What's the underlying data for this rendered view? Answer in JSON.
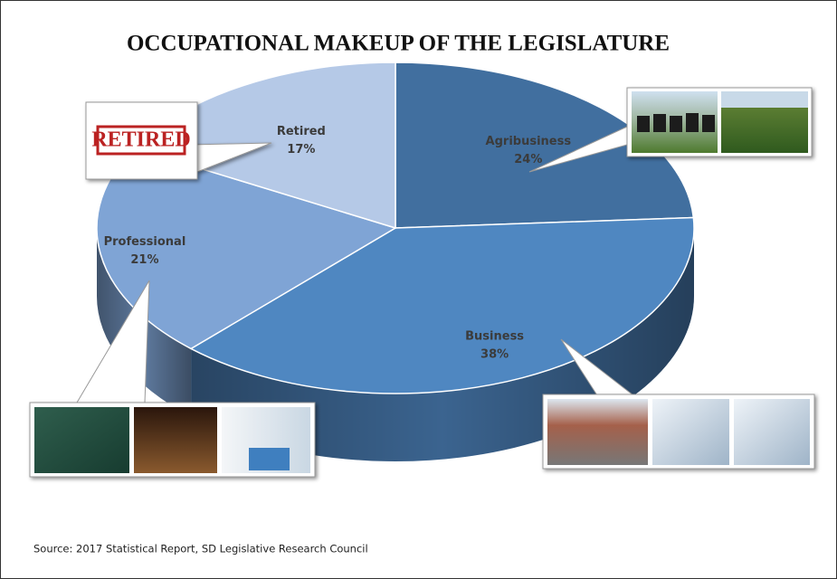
{
  "chart_data": {
    "type": "pie",
    "title": "OCCUPATIONAL MAKEUP OF THE LEGISLATURE",
    "categories": [
      "Agribusiness",
      "Business",
      "Professional",
      "Retired"
    ],
    "values": [
      24,
      38,
      21,
      17
    ],
    "value_labels": [
      "24%",
      "38%",
      "21%",
      "17%"
    ],
    "colors": [
      "#416f9f",
      "#4f87c1",
      "#7fa4d5",
      "#b5c9e7"
    ],
    "stamp": "RETIRED",
    "source": "Source: 2017 Statistical Report, SD Legislative Research Council"
  }
}
